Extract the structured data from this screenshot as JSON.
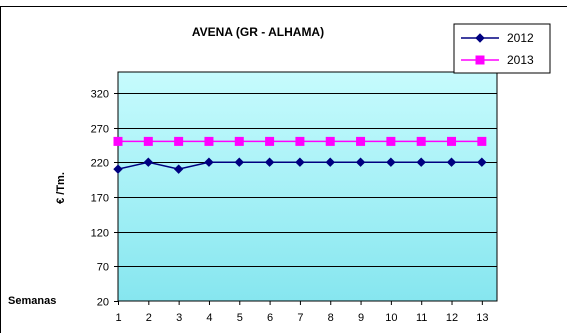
{
  "chart_data": {
    "type": "line",
    "title": "AVENA (GR - ALHAMA)",
    "xlabel": "Semanas",
    "ylabel": "€ /Tm.",
    "categories": [
      "1",
      "2",
      "3",
      "4",
      "5",
      "6",
      "7",
      "8",
      "9",
      "10",
      "11",
      "12",
      "13"
    ],
    "ylim": [
      20,
      350
    ],
    "yticks": [
      20,
      70,
      120,
      170,
      220,
      270,
      320
    ],
    "grid": true,
    "legend_position": "top-right",
    "series": [
      {
        "name": "2012",
        "color": "#000080",
        "marker": "diamond",
        "values": [
          210,
          220,
          210,
          220,
          220,
          220,
          220,
          220,
          220,
          220,
          220,
          220,
          220
        ]
      },
      {
        "name": "2013",
        "color": "#ff00ff",
        "marker": "square",
        "values": [
          250,
          250,
          250,
          250,
          250,
          250,
          250,
          250,
          250,
          250,
          250,
          250,
          250
        ]
      }
    ]
  }
}
